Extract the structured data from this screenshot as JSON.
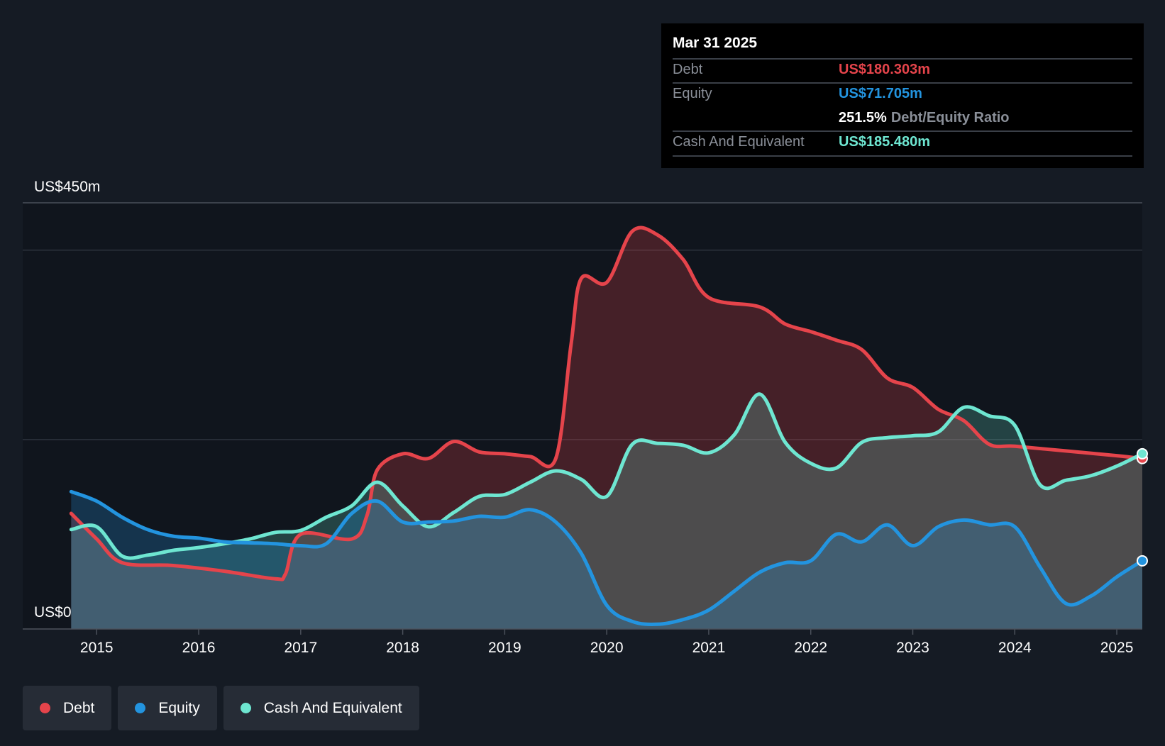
{
  "tooltip": {
    "date": "Mar 31 2025",
    "debt_label": "Debt",
    "debt_value": "US$180.303m",
    "equity_label": "Equity",
    "equity_value": "US$71.705m",
    "ratio_value": "251.5%",
    "ratio_label": "Debt/Equity Ratio",
    "cash_label": "Cash And Equivalent",
    "cash_value": "US$185.480m"
  },
  "legend": [
    {
      "label": "Debt",
      "color": "#e5444b"
    },
    {
      "label": "Equity",
      "color": "#2394df"
    },
    {
      "label": "Cash And Equivalent",
      "color": "#6ee6d1"
    }
  ],
  "colors": {
    "debt": "#e5444b",
    "equity": "#2394df",
    "cash": "#6ee6d1",
    "background": "#151b24"
  },
  "chart_data": {
    "type": "area",
    "y_top_label": "US$450m",
    "y_bottom_label": "US$0",
    "ylim": [
      0,
      450
    ],
    "xlim": [
      2014.72,
      2025.25
    ],
    "y_gridlines": [
      0,
      200,
      400,
      450
    ],
    "x_ticks": [
      2015,
      2016,
      2017,
      2018,
      2019,
      2020,
      2021,
      2022,
      2023,
      2024,
      2025
    ],
    "x_tick_labels": [
      "2015",
      "2016",
      "2017",
      "2018",
      "2019",
      "2020",
      "2021",
      "2022",
      "2023",
      "2024",
      "2025"
    ],
    "legend_position": "bottom-left",
    "grid": true,
    "series": [
      {
        "name": "Debt",
        "points": [
          [
            2014.75,
            122
          ],
          [
            2015.0,
            95
          ],
          [
            2015.25,
            70
          ],
          [
            2015.75,
            67
          ],
          [
            2016.25,
            61
          ],
          [
            2016.75,
            53
          ],
          [
            2016.85,
            58
          ],
          [
            2017.0,
            100
          ],
          [
            2017.5,
            95
          ],
          [
            2017.65,
            120
          ],
          [
            2017.75,
            168
          ],
          [
            2018.0,
            185
          ],
          [
            2018.25,
            180
          ],
          [
            2018.5,
            198
          ],
          [
            2018.75,
            187
          ],
          [
            2019.0,
            185
          ],
          [
            2019.25,
            182
          ],
          [
            2019.5,
            180
          ],
          [
            2019.65,
            300
          ],
          [
            2019.75,
            370
          ],
          [
            2020.0,
            366
          ],
          [
            2020.25,
            420
          ],
          [
            2020.5,
            416
          ],
          [
            2020.75,
            390
          ],
          [
            2021.0,
            350
          ],
          [
            2021.5,
            340
          ],
          [
            2021.75,
            322
          ],
          [
            2022.0,
            314
          ],
          [
            2022.25,
            305
          ],
          [
            2022.5,
            295
          ],
          [
            2022.75,
            265
          ],
          [
            2023.0,
            255
          ],
          [
            2023.25,
            232
          ],
          [
            2023.5,
            220
          ],
          [
            2023.75,
            195
          ],
          [
            2024.0,
            193
          ],
          [
            2024.5,
            188
          ],
          [
            2025.0,
            183
          ],
          [
            2025.25,
            180
          ]
        ]
      },
      {
        "name": "Equity",
        "points": [
          [
            2014.75,
            145
          ],
          [
            2015.0,
            135
          ],
          [
            2015.25,
            118
          ],
          [
            2015.5,
            105
          ],
          [
            2015.75,
            98
          ],
          [
            2016.0,
            96
          ],
          [
            2016.25,
            92
          ],
          [
            2016.5,
            91
          ],
          [
            2016.75,
            90
          ],
          [
            2017.0,
            88
          ],
          [
            2017.25,
            90
          ],
          [
            2017.5,
            122
          ],
          [
            2017.75,
            135
          ],
          [
            2018.0,
            113
          ],
          [
            2018.25,
            113
          ],
          [
            2018.5,
            114
          ],
          [
            2018.75,
            119
          ],
          [
            2019.0,
            118
          ],
          [
            2019.25,
            126
          ],
          [
            2019.5,
            113
          ],
          [
            2019.75,
            80
          ],
          [
            2020.0,
            25
          ],
          [
            2020.25,
            8
          ],
          [
            2020.5,
            5
          ],
          [
            2020.75,
            10
          ],
          [
            2021.0,
            20
          ],
          [
            2021.25,
            40
          ],
          [
            2021.5,
            60
          ],
          [
            2021.75,
            70
          ],
          [
            2022.0,
            72
          ],
          [
            2022.25,
            100
          ],
          [
            2022.5,
            92
          ],
          [
            2022.75,
            110
          ],
          [
            2023.0,
            88
          ],
          [
            2023.25,
            108
          ],
          [
            2023.5,
            115
          ],
          [
            2023.75,
            110
          ],
          [
            2024.0,
            108
          ],
          [
            2024.25,
            65
          ],
          [
            2024.5,
            27
          ],
          [
            2024.75,
            35
          ],
          [
            2025.0,
            55
          ],
          [
            2025.25,
            72
          ]
        ]
      },
      {
        "name": "Cash And Equivalent",
        "points": [
          [
            2014.75,
            105
          ],
          [
            2015.0,
            108
          ],
          [
            2015.25,
            77
          ],
          [
            2015.5,
            78
          ],
          [
            2015.75,
            83
          ],
          [
            2016.0,
            86
          ],
          [
            2016.25,
            90
          ],
          [
            2016.5,
            95
          ],
          [
            2016.75,
            102
          ],
          [
            2017.0,
            104
          ],
          [
            2017.25,
            118
          ],
          [
            2017.5,
            130
          ],
          [
            2017.75,
            155
          ],
          [
            2018.0,
            130
          ],
          [
            2018.25,
            108
          ],
          [
            2018.5,
            123
          ],
          [
            2018.75,
            140
          ],
          [
            2019.0,
            142
          ],
          [
            2019.25,
            155
          ],
          [
            2019.5,
            167
          ],
          [
            2019.75,
            158
          ],
          [
            2020.0,
            140
          ],
          [
            2020.25,
            195
          ],
          [
            2020.5,
            196
          ],
          [
            2020.75,
            194
          ],
          [
            2021.0,
            186
          ],
          [
            2021.25,
            205
          ],
          [
            2021.5,
            248
          ],
          [
            2021.75,
            197
          ],
          [
            2022.0,
            175
          ],
          [
            2022.25,
            170
          ],
          [
            2022.5,
            197
          ],
          [
            2022.75,
            202
          ],
          [
            2023.0,
            204
          ],
          [
            2023.25,
            208
          ],
          [
            2023.5,
            234
          ],
          [
            2023.75,
            225
          ],
          [
            2024.0,
            215
          ],
          [
            2024.25,
            152
          ],
          [
            2024.5,
            157
          ],
          [
            2024.75,
            162
          ],
          [
            2025.0,
            172
          ],
          [
            2025.25,
            185
          ]
        ]
      }
    ]
  }
}
